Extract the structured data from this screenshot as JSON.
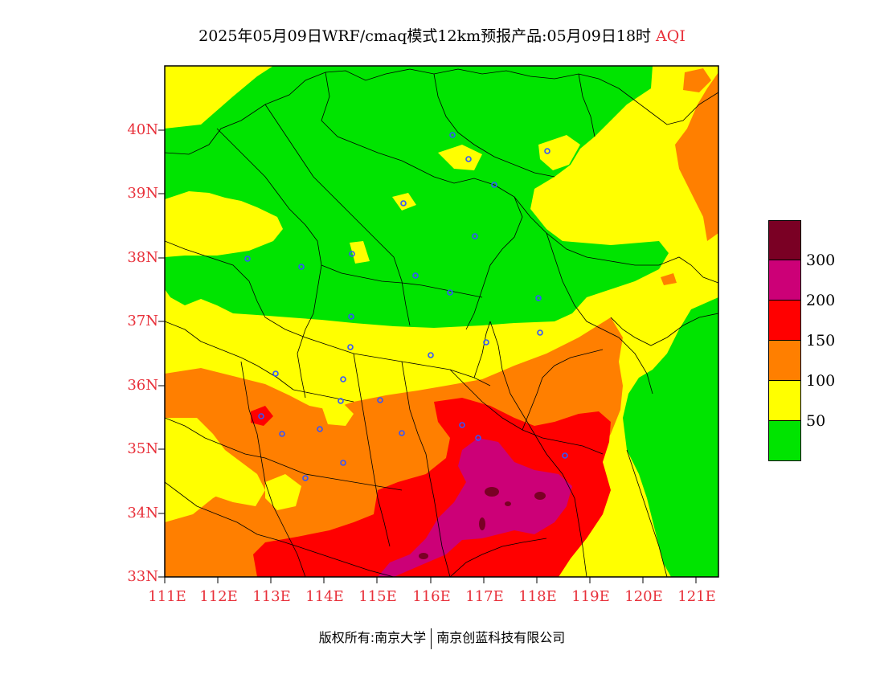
{
  "title": {
    "main": "2025年05月09日WRF/cmaq模式12km预报产品:05月09日18时",
    "product": "AQI"
  },
  "axes": {
    "lat_labels": [
      "40N",
      "39N",
      "38N",
      "37N",
      "36N",
      "35N",
      "34N",
      "33N"
    ],
    "lon_labels": [
      "111E",
      "112E",
      "113E",
      "114E",
      "115E",
      "116E",
      "117E",
      "118E",
      "119E",
      "120E",
      "121E"
    ]
  },
  "legend": {
    "colors": [
      "#7a0024",
      "#cc0077",
      "#ff0000",
      "#ff7f00",
      "#ffff00",
      "#00e400"
    ],
    "labels": [
      "300",
      "200",
      "150",
      "100",
      "50"
    ]
  },
  "credit": {
    "left": "版权所有:南京大学",
    "right": "南京创蓝科技有限公司"
  },
  "palette": {
    "green": "#00e400",
    "yellow": "#ffff00",
    "orange": "#ff7f00",
    "red": "#ff0000",
    "magenta": "#cc0077",
    "maroon": "#7a0024",
    "axis_label": "#e8303a",
    "station": "#3355ff"
  }
}
